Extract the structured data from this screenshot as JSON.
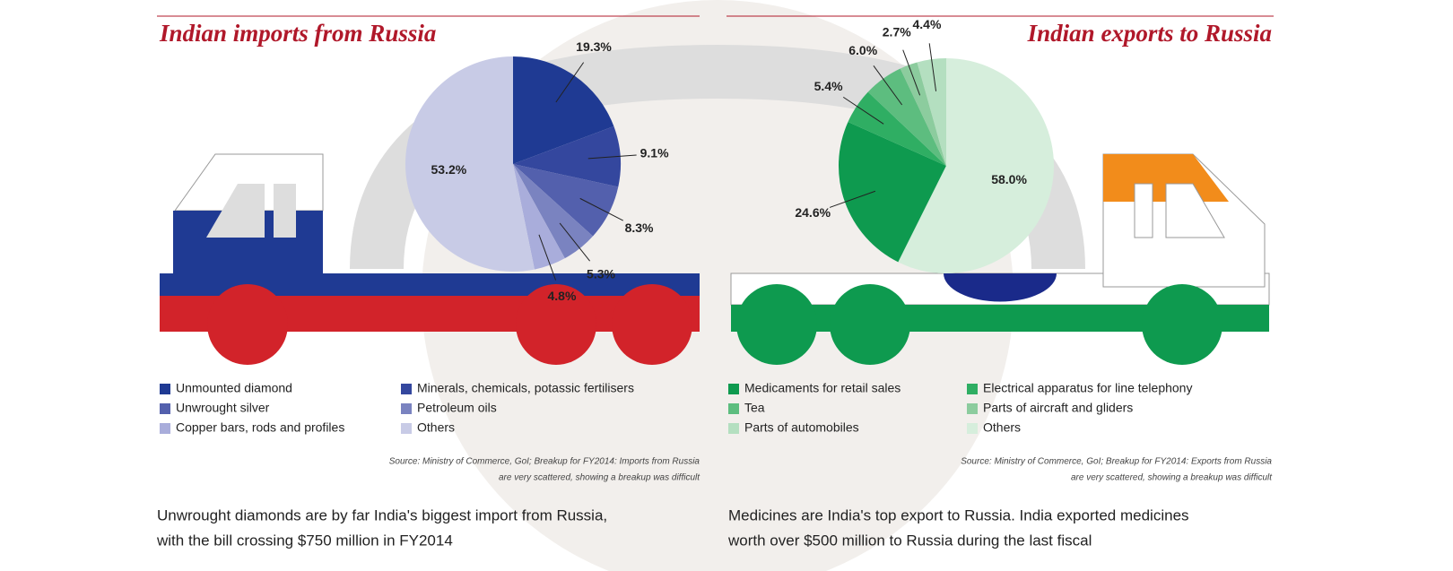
{
  "chart_data": [
    {
      "type": "pie",
      "title": "Indian imports from Russia",
      "categories": [
        "Unmounted diamond",
        "Minerals, chemicals, potassic fertilisers",
        "Unwrought silver",
        "Petroleum oils",
        "Copper bars, rods and profiles",
        "Others"
      ],
      "values": [
        19.3,
        9.1,
        8.3,
        5.3,
        4.8,
        53.2
      ],
      "value_labels": [
        "19.3%",
        "9.1%",
        "8.3%",
        "5.3%",
        "4.8%",
        "53.2%"
      ],
      "colors": [
        "#1f3a93",
        "#34479e",
        "#5360ad",
        "#7a83c0",
        "#a9addb",
        "#c8cbe6"
      ],
      "source": [
        "Source: Ministry of Commerce, GoI; Breakup for FY2014: Imports from Russia",
        "are very scattered, showing a breakup was difficult"
      ],
      "caption": [
        "Unwrought diamonds are by far India's biggest import from Russia,",
        "with the bill crossing $750 million in FY2014"
      ]
    },
    {
      "type": "pie",
      "title": "Indian exports to Russia",
      "categories": [
        "Medicaments for retail sales",
        "Electrical apparatus for line telephony",
        "Tea",
        "Parts of aircraft and gliders",
        "Parts of automobiles",
        "Others"
      ],
      "values": [
        24.6,
        5.4,
        6.0,
        2.7,
        4.4,
        58.0
      ],
      "value_labels": [
        "24.6%",
        "5.4%",
        "6.0%",
        "2.7%",
        "4.4%",
        "58.0%"
      ],
      "colors": [
        "#0e9a4f",
        "#2fae63",
        "#5dbd7f",
        "#8ccc9e",
        "#b4dfc0",
        "#d6eedc"
      ],
      "source": [
        "Source: Ministry of Commerce, GoI; Breakup for FY2014: Exports from Russia",
        "are very scattered, showing a breakup was difficult"
      ],
      "caption": [
        "Medicines are India's top export to Russia. India exported medicines",
        "worth over $500 million to Russia during the last fiscal"
      ]
    }
  ]
}
